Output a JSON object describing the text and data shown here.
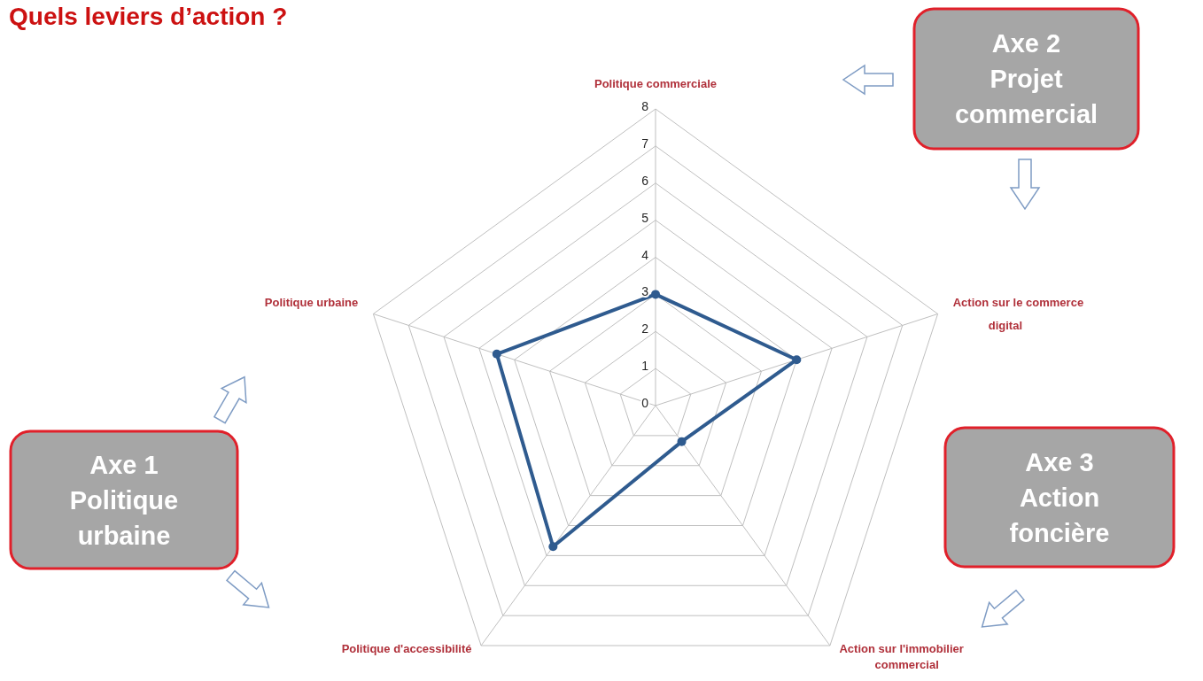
{
  "chart_data": {
    "type": "radar",
    "title": "Quels leviers d’action ?",
    "categories": [
      "Politique commerciale",
      "Action sur le commerce digital",
      "Action sur l'immobilier commercial",
      "Politique d'accessibilité",
      "Politique urbaine"
    ],
    "series": [
      {
        "color": "#2f5b8f",
        "values": [
          3,
          4,
          1.2,
          4.7,
          4.5
        ]
      }
    ],
    "ylim": [
      0,
      8
    ],
    "yticks": [
      0,
      1,
      2,
      3,
      4,
      5,
      6,
      7,
      8
    ],
    "grid": true,
    "marker": "circle",
    "annotations": [
      "Axe 1\nPolitique\nurbaine",
      "Axe 2\nProjet\ncommercial",
      "Axe 3\nAction\nfoncière"
    ]
  }
}
